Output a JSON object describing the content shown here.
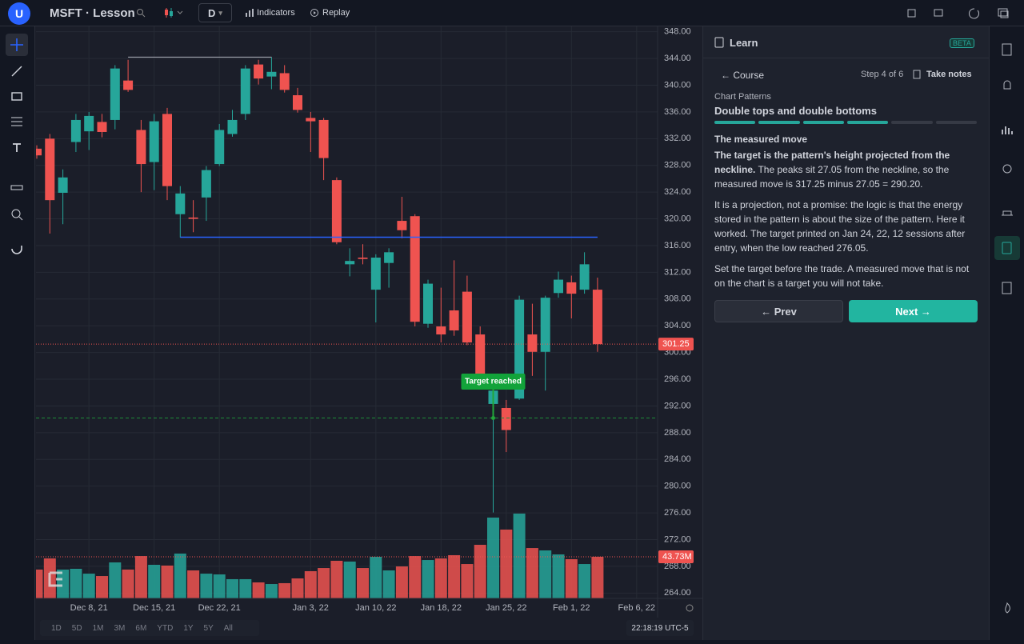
{
  "header": {
    "avatar": "U",
    "title": "MSFT · Lesson",
    "interval": "D",
    "indicators": "Indicators",
    "replay": "Replay"
  },
  "chart_data": {
    "type": "candlestick",
    "categories": [
      null,
      null,
      null,
      null,
      "Dec 8, 21",
      null,
      null,
      null,
      null,
      "Dec 15, 21",
      null,
      null,
      null,
      null,
      "Dec 22, 21",
      null,
      null,
      null,
      null,
      null,
      null,
      "Jan 3, 22",
      null,
      null,
      null,
      null,
      "Jan 10, 22",
      null,
      null,
      null,
      null,
      "Jan 18, 22",
      null,
      null,
      null,
      null,
      "Jan 25, 22",
      null,
      null,
      null,
      null,
      "Feb 1, 22",
      null,
      null,
      null,
      null,
      "Feb 6, 22"
    ],
    "open": [
      330.5,
      332,
      323.9,
      331.5,
      333.1,
      334.5,
      334.8,
      340.7,
      333.3,
      328.5,
      335.7,
      320.7,
      320.2,
      323.2,
      328.2,
      332.7,
      335.7,
      343.1,
      341.3,
      341.8,
      338.5,
      335.1,
      334.8,
      325.8,
      313.2,
      314.2,
      309.4,
      313.4,
      319.7,
      320.4,
      304.3,
      303.9,
      306.3,
      309.1,
      302.7,
      292.3,
      291.7,
      293.1,
      302.7,
      300.1,
      308.9,
      310.5,
      309.4,
      309.4,
      null,
      null,
      null
    ],
    "high": [
      331,
      332.7,
      327.4,
      335.7,
      336,
      335.7,
      343,
      343.8,
      334.8,
      335.7,
      336.6,
      324.9,
      322.8,
      327.9,
      334.2,
      336.3,
      343,
      343.8,
      344.2,
      343,
      339.6,
      336,
      335.1,
      326.2,
      315.6,
      316.2,
      314.7,
      315.6,
      323.3,
      320.7,
      310.9,
      309.7,
      313.8,
      311.5,
      303.9,
      296.5,
      292.9,
      308.5,
      307.3,
      308.5,
      312.1,
      311.5,
      315,
      311.2,
      null,
      null,
      null
    ],
    "low": [
      329,
      317.8,
      319.2,
      330,
      330.3,
      332.2,
      333.4,
      339,
      324,
      324.3,
      322.8,
      317.2,
      318,
      319.7,
      327.9,
      332.3,
      334.8,
      340.1,
      339.4,
      338.9,
      335.9,
      330,
      325.8,
      316.2,
      311.4,
      313.2,
      304.5,
      309.7,
      317.1,
      303.9,
      303.7,
      301.5,
      302.5,
      301.1,
      296.5,
      276.05,
      285.1,
      292.9,
      296.5,
      294.3,
      308.2,
      305.1,
      308.8,
      300.1,
      null,
      null,
      null
    ],
    "close": [
      329.5,
      322.8,
      326.2,
      334.8,
      335.4,
      333,
      342.5,
      339.3,
      328.2,
      334.6,
      324.9,
      323.8,
      320,
      327.3,
      333.3,
      334.8,
      342.5,
      341,
      342,
      339.3,
      336.3,
      334.6,
      329.1,
      316.5,
      313.7,
      314,
      314.2,
      315,
      318.3,
      304.6,
      310.3,
      302.7,
      303.3,
      301.5,
      296.7,
      294.3,
      288.4,
      307.9,
      300.1,
      308.2,
      310.9,
      308.8,
      313.2,
      301.25,
      null,
      null,
      null
    ],
    "volume": [
      30.3,
      42,
      30.3,
      31.1,
      26,
      23.5,
      37.8,
      30.3,
      44.5,
      35.3,
      34.5,
      47.1,
      29.4,
      26,
      25.2,
      20.2,
      20.2,
      16.8,
      15.1,
      16,
      21,
      28.6,
      31.9,
      39.5,
      38.7,
      31.9,
      43.7,
      29.4,
      33.6,
      44.5,
      40.3,
      42,
      45.4,
      36.1,
      56.3,
      84.9,
      72.3,
      89.1,
      52.9,
      50.4,
      46.2,
      41.2,
      36.1,
      43.73,
      null,
      null,
      null
    ],
    "last_volume_label": "43.73M",
    "up_color": "#26a69a",
    "down_color": "#ef5350",
    "ylim": [
      263.2,
      348.8
    ],
    "yticks": [
      {
        "value": 264,
        "label": "264.00"
      },
      {
        "value": 268,
        "label": "268.00"
      },
      {
        "value": 272,
        "label": "272.00"
      },
      {
        "value": 276,
        "label": "276.00"
      },
      {
        "value": 280,
        "label": "280.00"
      },
      {
        "value": 284,
        "label": "284.00"
      },
      {
        "value": 288,
        "label": "288.00"
      },
      {
        "value": 292,
        "label": "292.00"
      },
      {
        "value": 296,
        "label": "296.00"
      },
      {
        "value": 300,
        "label": "300.00"
      },
      {
        "value": 304,
        "label": "304.00"
      },
      {
        "value": 308,
        "label": "308.00"
      },
      {
        "value": 312,
        "label": "312.00"
      },
      {
        "value": 316,
        "label": "316.00"
      },
      {
        "value": 320,
        "label": "320.00"
      },
      {
        "value": 324,
        "label": "324.00"
      },
      {
        "value": 328,
        "label": "328.00"
      },
      {
        "value": 332,
        "label": "332.00"
      },
      {
        "value": 336,
        "label": "336.00"
      },
      {
        "value": 340,
        "label": "340.00"
      },
      {
        "value": 344,
        "label": "344.00"
      },
      {
        "value": 348,
        "label": "348.00"
      }
    ],
    "grid": true,
    "neckline": 317.25,
    "double_top": 344.2,
    "target": 290.2,
    "annotation": "Target reached"
  },
  "footer": {
    "ranges": [
      "1D",
      "5D",
      "1M",
      "3M",
      "6M",
      "YTD",
      "1Y",
      "5Y",
      "All"
    ],
    "clock": "22:18:19 UTC-5"
  },
  "panel": {
    "title": "Learn",
    "badge": "BETA",
    "back": "← Course",
    "step": "Step 4 of 6",
    "notes": "Take notes",
    "course": "Chart Patterns",
    "lesson": "Double tops and double bottoms",
    "progress": [
      true,
      true,
      true,
      true,
      false,
      false
    ],
    "heading": "The measured move",
    "p1_bold": "The target is the pattern's height projected from the neckline.",
    "p1": " The peaks sit 27.05 from the neckline, so the measured move is 317.25 minus 27.05 = 290.20.",
    "p2": "It is a projection, not a promise: the logic is that the energy stored in the pattern is about the size of the pattern. Here it worked. The target printed on Jan 24, 22, 12 sessions after entry, when the low reached 276.05.",
    "p3": "Set the target before the trade. A measured move that is not on the chart is a target you will not take.",
    "prev": "← Prev",
    "next": "Next →"
  }
}
